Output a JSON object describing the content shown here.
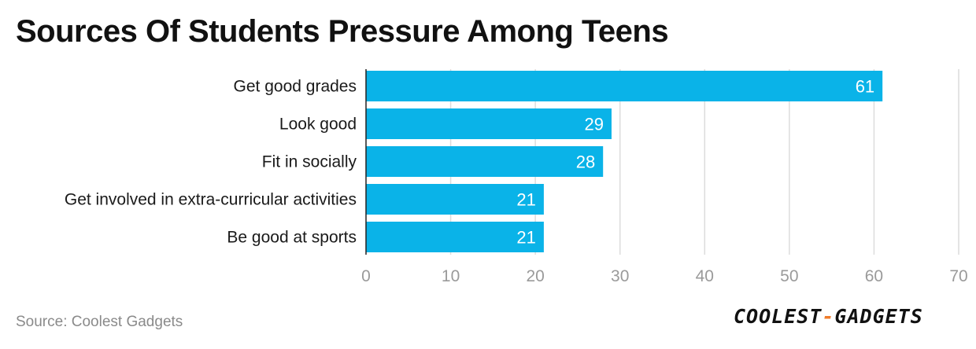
{
  "chart_data": {
    "type": "bar",
    "orientation": "horizontal",
    "title": "Sources Of Students Pressure Among Teens",
    "categories": [
      "Get good grades",
      "Look good",
      "Fit in socially",
      "Get involved in extra-curricular activities",
      "Be good at sports"
    ],
    "values": [
      61,
      29,
      28,
      21,
      21
    ],
    "xlim": [
      0,
      70
    ],
    "xticks": [
      0,
      10,
      20,
      30,
      40,
      50,
      60,
      70
    ],
    "grid": true,
    "bar_color": "#0ab3e8",
    "label_color": "#ffffff",
    "tick_color": "#9a9a9a",
    "grid_color": "#dcdcdc"
  },
  "footer": {
    "source": "Source: Coolest Gadgets",
    "logo_left": "COOLEST",
    "logo_dash": "-",
    "logo_right": "GADGETS",
    "logo_dash_color": "#f07c2a"
  }
}
